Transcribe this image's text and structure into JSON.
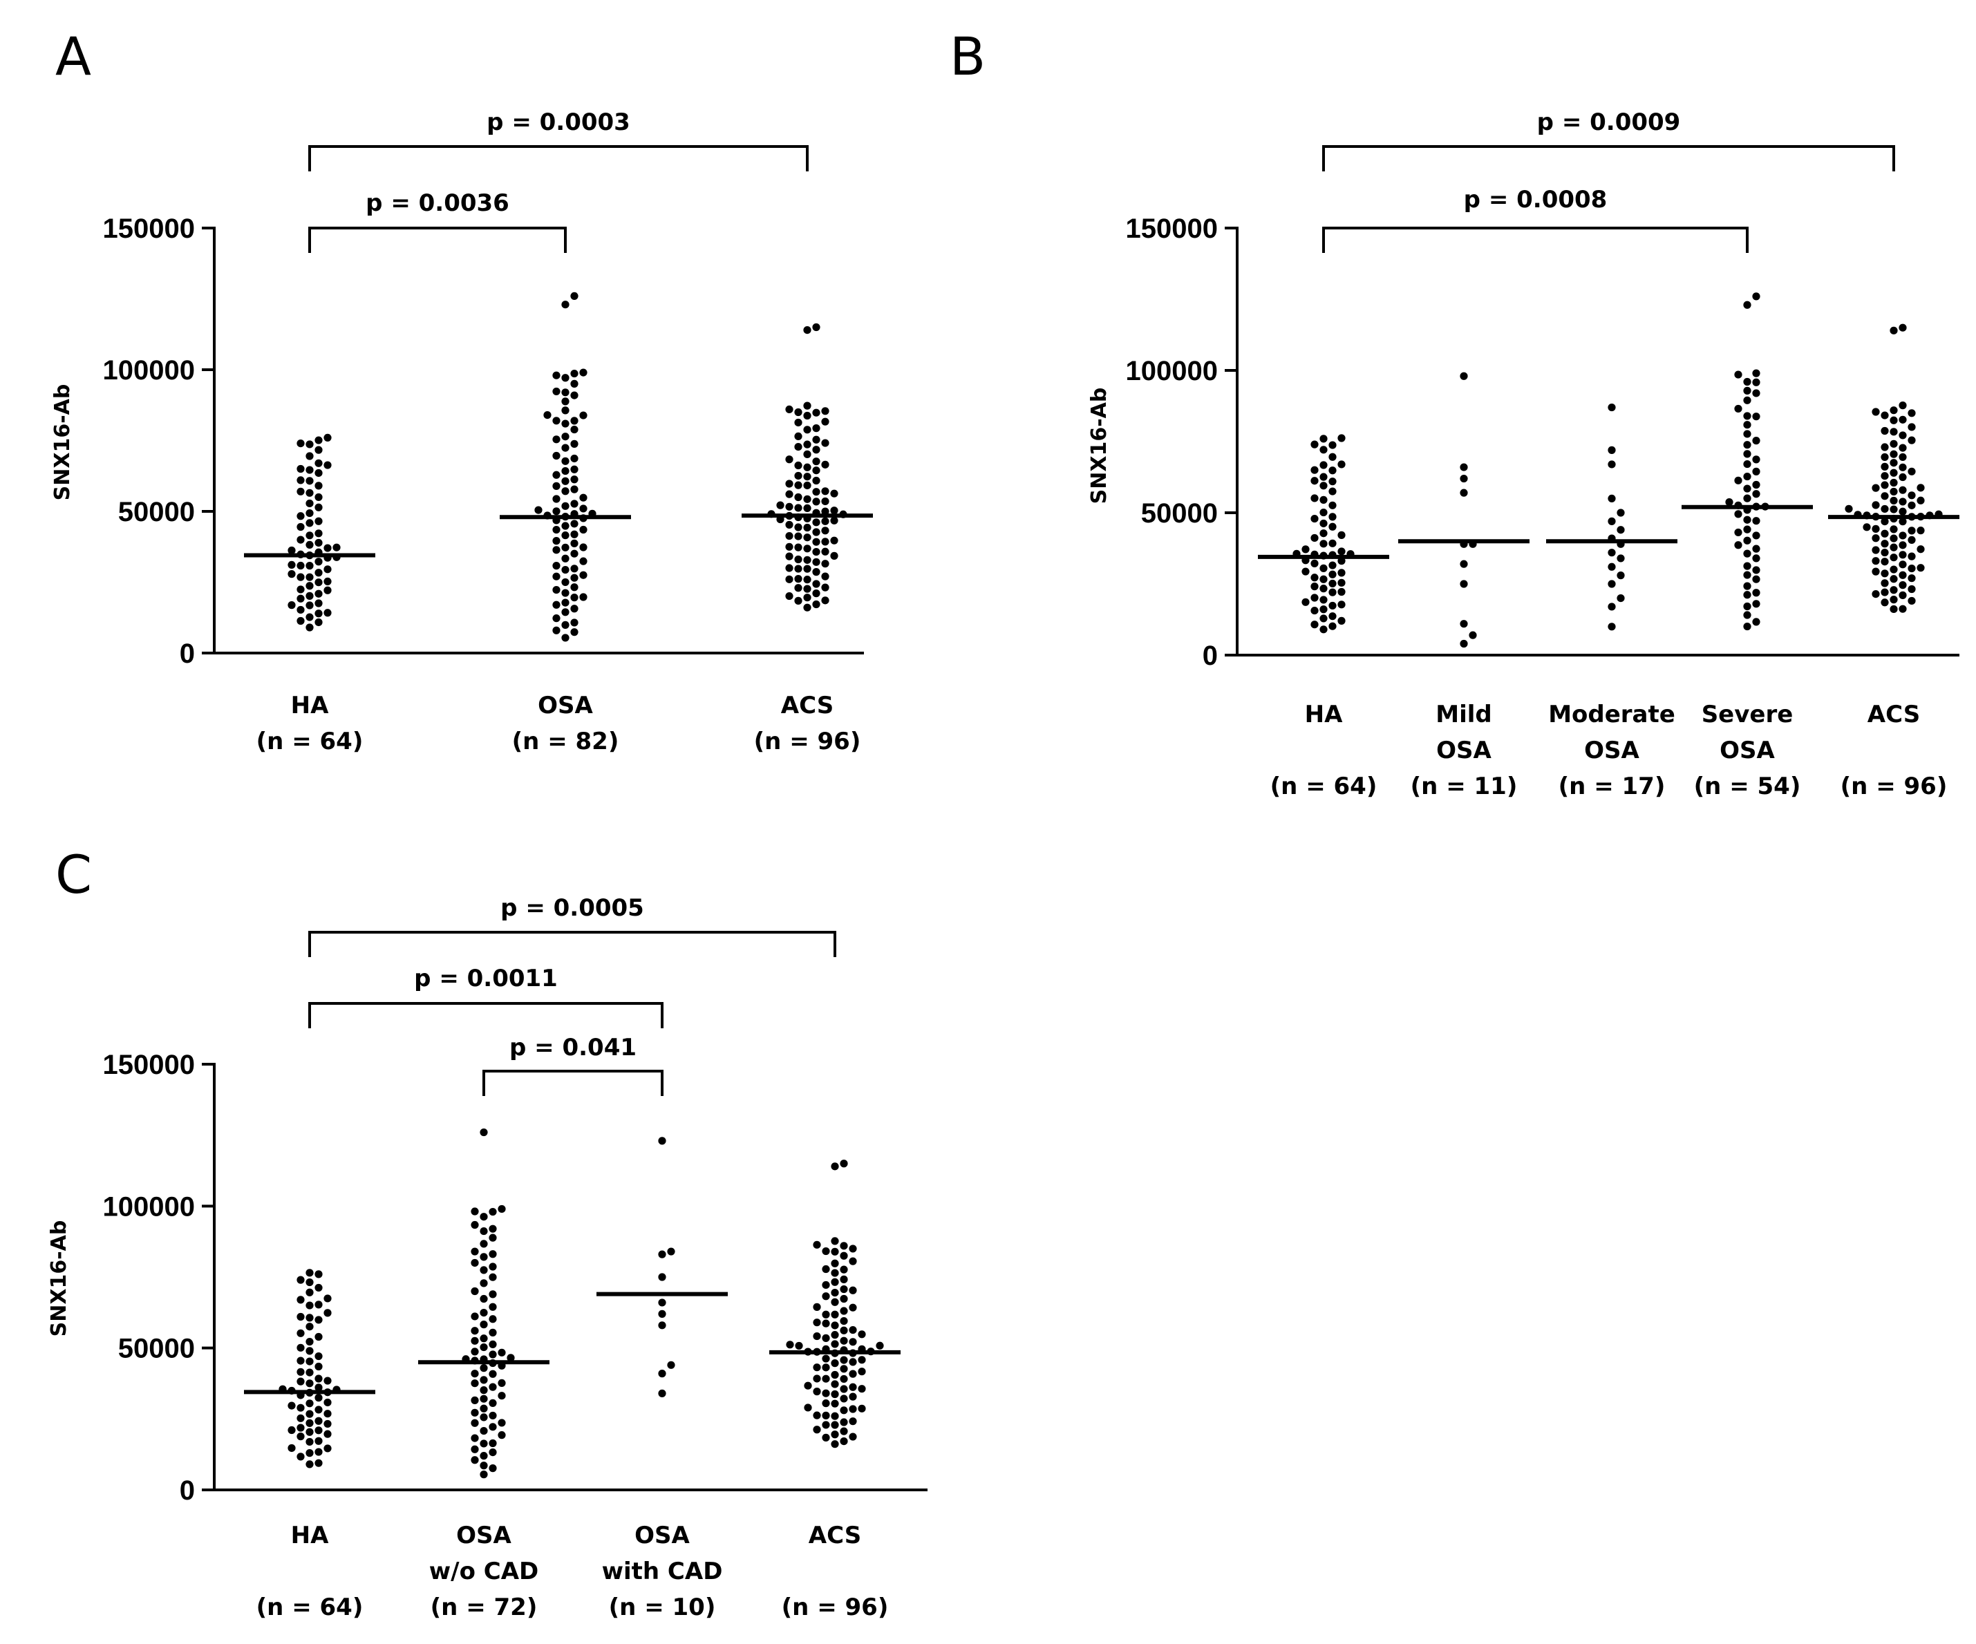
{
  "chart_data": [
    {
      "panel": "A",
      "type": "scatter",
      "ylabel": "SNX16-Ab",
      "ylim": [
        0,
        150000
      ],
      "yticks": [
        "0",
        "50000",
        "100000",
        "150000"
      ],
      "groups": [
        {
          "lines": [
            "HA",
            "(n = 64)"
          ],
          "n": 64,
          "median": 34500,
          "low": 8000,
          "high": 77000,
          "extra": [
            76000,
            74000,
            67000,
            65000,
            61000,
            57000
          ]
        },
        {
          "lines": [
            "OSA",
            "(n = 82)"
          ],
          "n": 82,
          "median": 48000,
          "low": 4000,
          "high": 100000,
          "extra": [
            126000,
            123000,
            99000,
            98000,
            92000,
            84000,
            82000
          ]
        },
        {
          "lines": [
            "ACS",
            "(n = 96)"
          ],
          "n": 96,
          "median": 48500,
          "low": 15000,
          "high": 88000,
          "extra": [
            115000,
            114000,
            86000,
            85000
          ]
        }
      ],
      "comparisons": [
        {
          "from": 0,
          "to": 1,
          "label": "p = 0.0036"
        },
        {
          "from": 0,
          "to": 2,
          "label": "p = 0.0003"
        }
      ]
    },
    {
      "panel": "B",
      "type": "scatter",
      "ylabel": "SNX16-Ab",
      "ylim": [
        0,
        150000
      ],
      "yticks": [
        "0",
        "50000",
        "100000",
        "150000"
      ],
      "groups": [
        {
          "lines": [
            "HA",
            "",
            "(n = 64)"
          ],
          "n": 64,
          "median": 34500,
          "low": 8000,
          "high": 77000,
          "extra": [
            76000,
            74000,
            67000,
            65000,
            61000
          ]
        },
        {
          "lines": [
            "Mild",
            "OSA",
            "(n = 11)"
          ],
          "n": 11,
          "median": 40000,
          "low": 4000,
          "high": 66000,
          "points": [
            98000,
            66000,
            62000,
            57000,
            39000,
            39000,
            32000,
            25000,
            11000,
            7000,
            4000
          ]
        },
        {
          "lines": [
            "Moderate",
            "OSA",
            "(n = 17)"
          ],
          "n": 17,
          "median": 40000,
          "low": 10000,
          "high": 72000,
          "points": [
            87000,
            72000,
            67000,
            55000,
            50000,
            47000,
            44000,
            41000,
            39000,
            36000,
            34000,
            31000,
            28000,
            25000,
            20000,
            17000,
            10000
          ]
        },
        {
          "lines": [
            "Severe",
            "OSA",
            "(n = 54)"
          ],
          "n": 54,
          "median": 52000,
          "low": 8000,
          "high": 100000,
          "extra": [
            126000,
            123000,
            99000,
            96000,
            92000,
            84000
          ]
        },
        {
          "lines": [
            "ACS",
            "",
            "(n = 96)"
          ],
          "n": 96,
          "median": 48500,
          "low": 15000,
          "high": 88000,
          "extra": [
            115000,
            114000,
            86000,
            85000
          ]
        }
      ],
      "comparisons": [
        {
          "from": 0,
          "to": 3,
          "label": "p = 0.0008"
        },
        {
          "from": 0,
          "to": 4,
          "label": "p = 0.0009"
        }
      ]
    },
    {
      "panel": "C",
      "type": "scatter",
      "ylabel": "SNX16-Ab",
      "ylim": [
        0,
        150000
      ],
      "yticks": [
        "0",
        "50000",
        "100000",
        "150000"
      ],
      "groups": [
        {
          "lines": [
            "HA",
            "",
            "(n = 64)"
          ],
          "n": 64,
          "median": 34500,
          "low": 8000,
          "high": 77000,
          "extra": [
            76000,
            74000,
            67000,
            65000,
            61000
          ]
        },
        {
          "lines": [
            "OSA",
            "w/o CAD",
            "(n = 72)"
          ],
          "n": 72,
          "median": 45000,
          "low": 4000,
          "high": 100000,
          "extra": [
            126000,
            99000,
            98000,
            92000,
            84000,
            80000
          ]
        },
        {
          "lines": [
            "OSA",
            "with CAD",
            "(n = 10)"
          ],
          "n": 10,
          "median": 69000,
          "low": 34000,
          "high": 84000,
          "points": [
            123000,
            84000,
            83000,
            75000,
            66000,
            62000,
            58000,
            44000,
            41000,
            34000
          ]
        },
        {
          "lines": [
            "ACS",
            "",
            "(n = 96)"
          ],
          "n": 96,
          "median": 48500,
          "low": 15000,
          "high": 88000,
          "extra": [
            115000,
            114000,
            86000,
            85000
          ]
        }
      ],
      "comparisons": [
        {
          "from": 1,
          "to": 2,
          "label": "p = 0.041"
        },
        {
          "from": 0,
          "to": 2,
          "label": "p = 0.0011"
        },
        {
          "from": 0,
          "to": 3,
          "label": "p = 0.0005"
        }
      ]
    }
  ]
}
